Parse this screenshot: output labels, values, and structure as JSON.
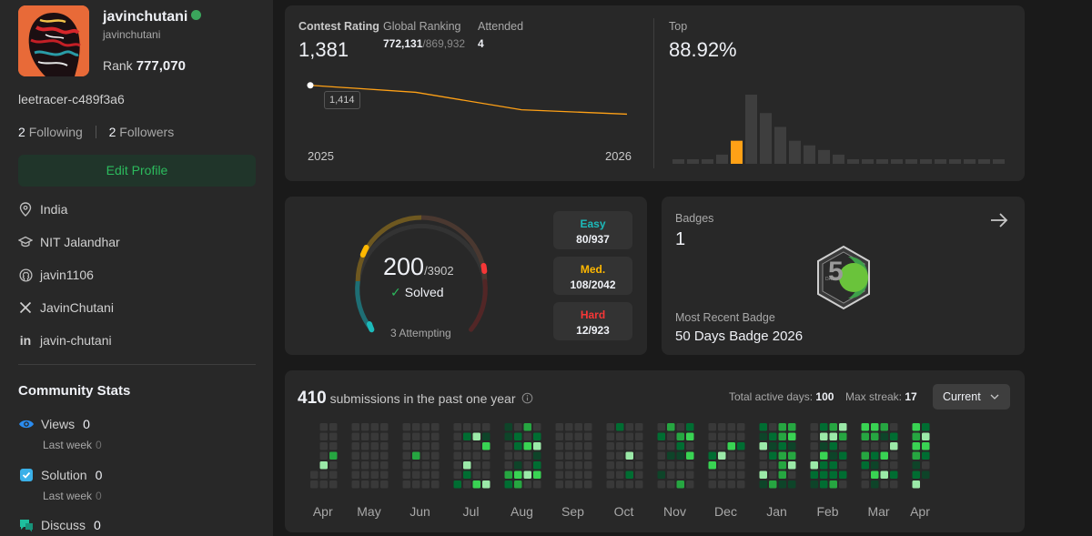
{
  "profile": {
    "username": "javinchutani",
    "handle": "javinchutani",
    "rank_label": "Rank",
    "rank_value": "777,070",
    "tracer": "leetracer-c489f3a6",
    "following_count": "2",
    "following_label": "Following",
    "followers_count": "2",
    "followers_label": "Followers",
    "edit_label": "Edit Profile",
    "location": "India",
    "school": "NIT Jalandhar",
    "github": "javin1106",
    "twitter": "JavinChutani",
    "linkedin": "javin-chutani"
  },
  "community": {
    "title": "Community Stats",
    "views_label": "Views",
    "views_value": "0",
    "views_sub": "Last week",
    "views_sub_value": "0",
    "solution_label": "Solution",
    "solution_value": "0",
    "solution_sub": "Last week",
    "solution_sub_value": "0",
    "discuss_label": "Discuss",
    "discuss_value": "0"
  },
  "contest": {
    "rating_label": "Contest Rating",
    "rating_value": "1,381",
    "global_label": "Global Ranking",
    "global_value": "772,131",
    "global_total": "/869,932",
    "attended_label": "Attended",
    "attended_value": "4",
    "top_label": "Top",
    "top_value": "88.92%",
    "tooltip_value": "1,414",
    "x_start": "2025",
    "x_end": "2026"
  },
  "chart_data": [
    {
      "type": "line",
      "title": "",
      "x": [
        "2025",
        "",
        "",
        "2026"
      ],
      "values": [
        1414,
        1406,
        1386,
        1381
      ],
      "ylim": [
        1370,
        1420
      ],
      "color": "#ffa116"
    },
    {
      "type": "bar",
      "title": "",
      "values": [
        1,
        1,
        1,
        2,
        5,
        15,
        11,
        8,
        5,
        4,
        3,
        2,
        1,
        1,
        1,
        1,
        1,
        1,
        1,
        1,
        1,
        1,
        1
      ],
      "highlight_index": 4,
      "highlight_color": "#ffa116",
      "bar_color": "#3e3e3e"
    },
    {
      "type": "heatmap",
      "title": "",
      "months": [
        "Apr",
        "May",
        "Jun",
        "Jul",
        "Aug",
        "Sep",
        "Oct",
        "Nov",
        "Dec",
        "Jan",
        "Feb",
        "Mar",
        "Apr"
      ],
      "levels": [
        "#393939",
        "#0e4429",
        "#006d32",
        "#26a641",
        "#39d353",
        "#9be9a8"
      ]
    }
  ],
  "solved": {
    "solved_count": "200",
    "total": "/3902",
    "solved_label": "Solved",
    "attempting": "3 Attempting",
    "easy_label": "Easy",
    "easy_value": "80/937",
    "med_label": "Med.",
    "med_value": "108/2042",
    "hard_label": "Hard",
    "hard_value": "12/923",
    "easy_color": "#1cbaba",
    "med_color": "#ffb800",
    "hard_color": "#f63737"
  },
  "badges": {
    "label": "Badges",
    "count": "1",
    "recent_label": "Most Recent Badge",
    "recent_name": "50 Days Badge 2026",
    "badge_days_text": "DAYS"
  },
  "submissions": {
    "count": "410",
    "text": "submissions in the past one year",
    "active_label": "Total active days:",
    "active_value": "100",
    "streak_label": "Max streak:",
    "streak_value": "17",
    "select_value": "Current"
  }
}
